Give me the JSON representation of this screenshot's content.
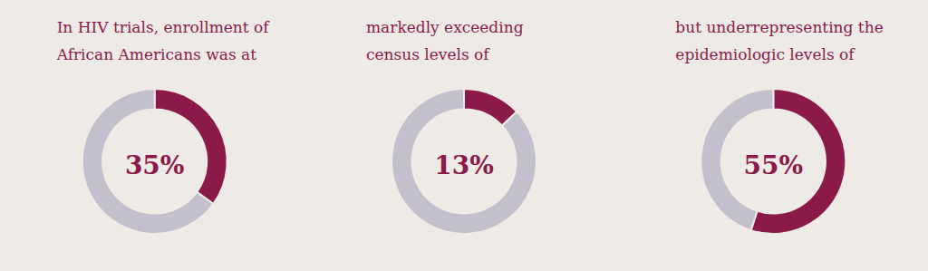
{
  "chart_data": [
    {
      "type": "pie",
      "title": "In HIV trials, enrollment of",
      "subtitle": "African Americans was at",
      "values": [
        35,
        65
      ],
      "colors": [
        "#8b1a4a",
        "#c4bfcc"
      ],
      "data_labels": true,
      "value_labels": [
        "35%",
        null
      ]
    },
    {
      "type": "pie",
      "title": "markedly exceeding",
      "subtitle": "census levels of",
      "values": [
        13,
        87
      ],
      "colors": [
        "#8b1a4a",
        "#c4bfcc"
      ],
      "data_labels": true,
      "value_labels": [
        "13%",
        null
      ]
    },
    {
      "type": "pie",
      "title": "but underrepresenting the",
      "subtitle": "epidemiologic levels of",
      "values": [
        55,
        45
      ],
      "colors": [
        "#8b1a4a",
        "#c4bfcc"
      ],
      "data_labels": true,
      "value_labels": [
        "55%",
        null
      ]
    }
  ]
}
